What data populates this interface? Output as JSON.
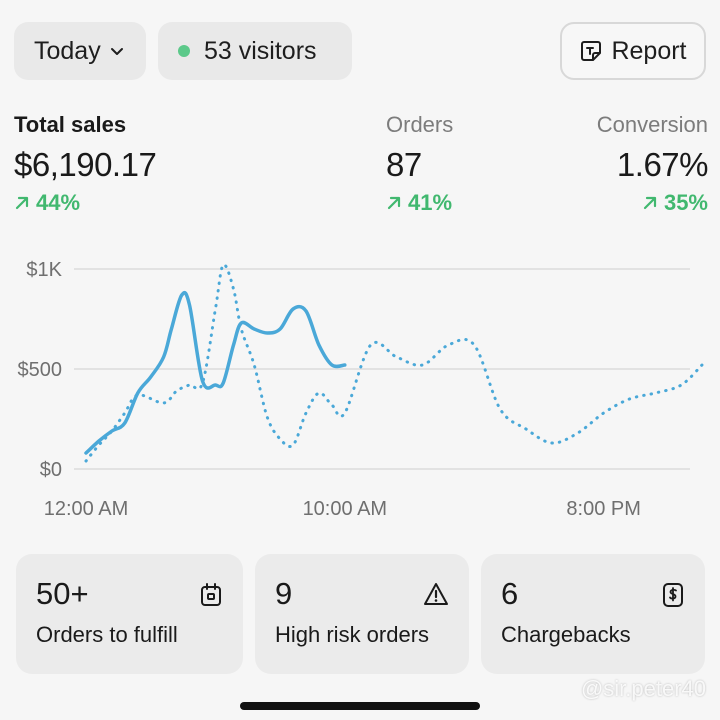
{
  "header": {
    "date_filter": "Today",
    "visitors": "53 visitors",
    "report_label": "Report"
  },
  "metrics": {
    "sales": {
      "label": "Total sales",
      "value": "$6,190.17",
      "change": "44%"
    },
    "orders": {
      "label": "Orders",
      "value": "87",
      "change": "41%"
    },
    "conversion": {
      "label": "Conversion",
      "value": "1.67%",
      "change": "35%"
    }
  },
  "colors": {
    "accent": "#4aa8d8",
    "positive": "#41b86f",
    "visitor_dot": "#5cc98a"
  },
  "chart_data": {
    "type": "line",
    "y_ticks": [
      "$0",
      "$500",
      "$1K"
    ],
    "x_ticks": [
      "12:00 AM",
      "10:00 AM",
      "8:00 PM"
    ],
    "ylim": [
      0,
      1000
    ],
    "grid": true,
    "series": [
      {
        "style": "solid",
        "x": [
          0,
          0.5,
          1,
          1.5,
          2,
          2.5,
          3,
          3.3,
          3.7,
          4,
          4.5,
          5,
          5.3,
          5.7,
          6,
          6.5,
          7,
          7.5,
          8,
          8.5,
          9,
          9.5,
          10
        ],
        "values": [
          80,
          140,
          190,
          230,
          380,
          460,
          560,
          700,
          870,
          820,
          440,
          420,
          430,
          620,
          730,
          700,
          680,
          700,
          800,
          790,
          620,
          520,
          520
        ]
      },
      {
        "style": "dotted",
        "x": [
          0,
          0.5,
          1,
          1.5,
          2,
          3,
          3.5,
          4,
          4.5,
          5,
          5.3,
          5.7,
          6,
          6.5,
          7,
          7.5,
          8,
          8.5,
          9,
          9.5,
          10,
          11,
          12,
          13,
          14,
          15,
          16,
          17,
          18,
          19,
          20,
          21,
          22,
          23,
          23.8
        ],
        "values": [
          40,
          120,
          190,
          280,
          370,
          330,
          390,
          420,
          430,
          800,
          1020,
          900,
          700,
          520,
          260,
          150,
          120,
          280,
          380,
          320,
          280,
          620,
          560,
          520,
          620,
          620,
          300,
          200,
          130,
          180,
          280,
          350,
          380,
          420,
          520
        ]
      }
    ]
  },
  "cards": [
    {
      "value": "50+",
      "label": "Orders to fulfill",
      "icon": "package-icon"
    },
    {
      "value": "9",
      "label": "High risk orders",
      "icon": "warning-icon"
    },
    {
      "value": "6",
      "label": "Chargebacks",
      "icon": "dollar-receipt-icon"
    }
  ],
  "watermark": "@sir.peter40"
}
